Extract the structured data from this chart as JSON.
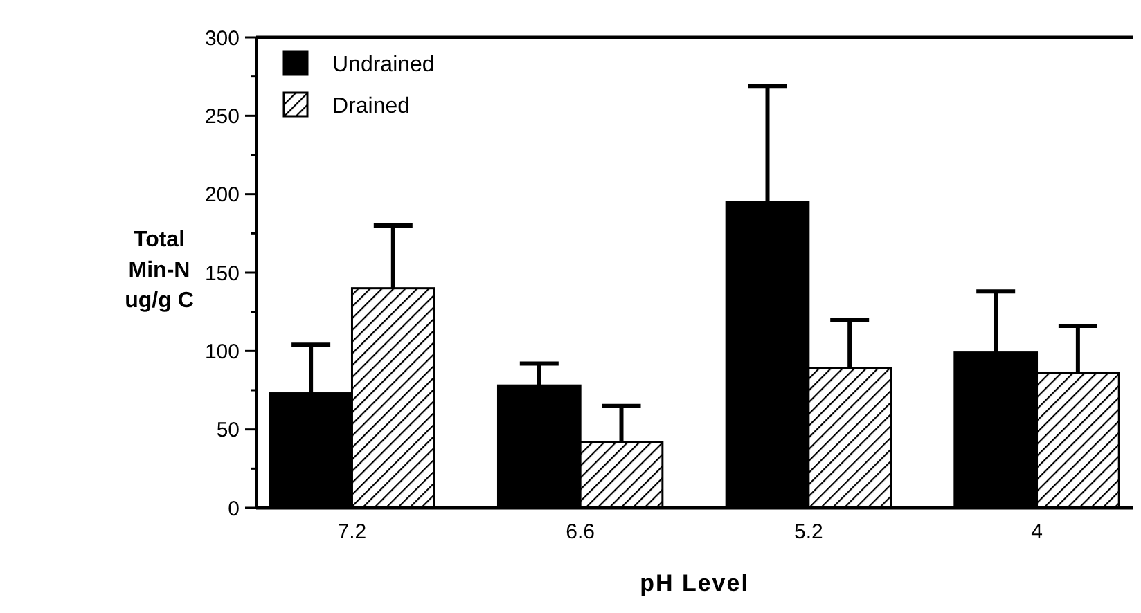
{
  "chart_data": {
    "type": "bar",
    "xlabel": "pH Level",
    "ylabel": "Total\nMin-N\nug/g C",
    "categories": [
      "7.2",
      "6.6",
      "5.2",
      "4"
    ],
    "series": [
      {
        "name": "Undrained",
        "color": "#000000",
        "values": [
          73,
          78,
          195,
          99
        ],
        "errors": [
          [
            73,
            104
          ],
          [
            78,
            92
          ],
          [
            195,
            269
          ],
          [
            99,
            138
          ]
        ]
      },
      {
        "name": "Drained",
        "color": "#000000",
        "values": [
          140,
          42,
          89,
          86
        ],
        "errors": [
          [
            140,
            180
          ],
          [
            42,
            65
          ],
          [
            89,
            120
          ],
          [
            86,
            116
          ]
        ]
      }
    ],
    "ylim": [
      0,
      300
    ],
    "yticks": [
      0,
      {
        "value": 25,
        "label": null
      },
      50,
      {
        "value": 75,
        "label": null
      },
      100,
      {
        "value": 125,
        "label": null
      },
      150,
      {
        "value": 175,
        "label": null
      },
      200,
      {
        "value": 225,
        "label": null
      },
      250,
      {
        "value": 275,
        "label": null
      },
      300
    ],
    "legend": "top left"
  }
}
